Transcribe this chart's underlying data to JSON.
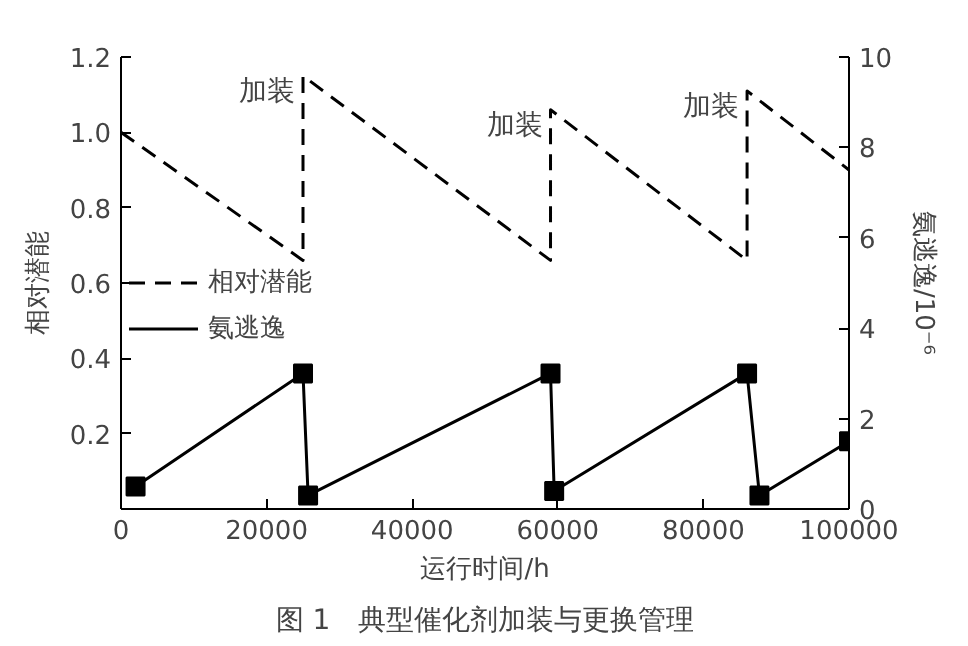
{
  "chart_data": {
    "type": "line",
    "title": "图 1　典型催化剂加装与更换管理",
    "xlabel": "运行时间/h",
    "ylabel": "相对潜能",
    "y2label": "氨逃逸/10⁻⁶",
    "xlim": [
      0,
      100000
    ],
    "xticks": [
      0,
      20000,
      40000,
      60000,
      80000,
      100000
    ],
    "ylim": [
      0,
      1.2
    ],
    "yticks": [
      0.2,
      0.4,
      0.6,
      0.8,
      {
        "value": 1,
        "label": "1.0"
      },
      1.2
    ],
    "y2lim": [
      0,
      10
    ],
    "y2ticks": [
      0,
      2,
      4,
      6,
      8,
      10
    ],
    "grid": false,
    "legend": "left",
    "series": [
      {
        "name": "相对潜能",
        "color": "#000000",
        "line_style": "dashed",
        "marker": "none",
        "x": [
          0,
          25000,
          25000,
          59000,
          59000,
          86000,
          86000,
          100000
        ],
        "values": [
          1.0,
          0.66,
          1.15,
          0.66,
          1.06,
          0.66,
          1.11,
          0.9
        ]
      },
      {
        "name": "氨逃逸",
        "color": "#000000",
        "line_style": "solid",
        "marker": "square",
        "axis": "y2",
        "x": [
          2000,
          25000,
          25700,
          59000,
          59500,
          86000,
          87700,
          100000
        ],
        "values": [
          0.5,
          3.0,
          0.3,
          3.0,
          0.4,
          3.0,
          0.3,
          1.5
        ]
      }
    ],
    "annotations": [
      {
        "text": "加装",
        "x": 25000,
        "y": 1.15
      },
      {
        "text": "加装",
        "x": 59000,
        "y": 1.06
      },
      {
        "text": "加装",
        "x": 86000,
        "y": 1.11
      }
    ]
  }
}
